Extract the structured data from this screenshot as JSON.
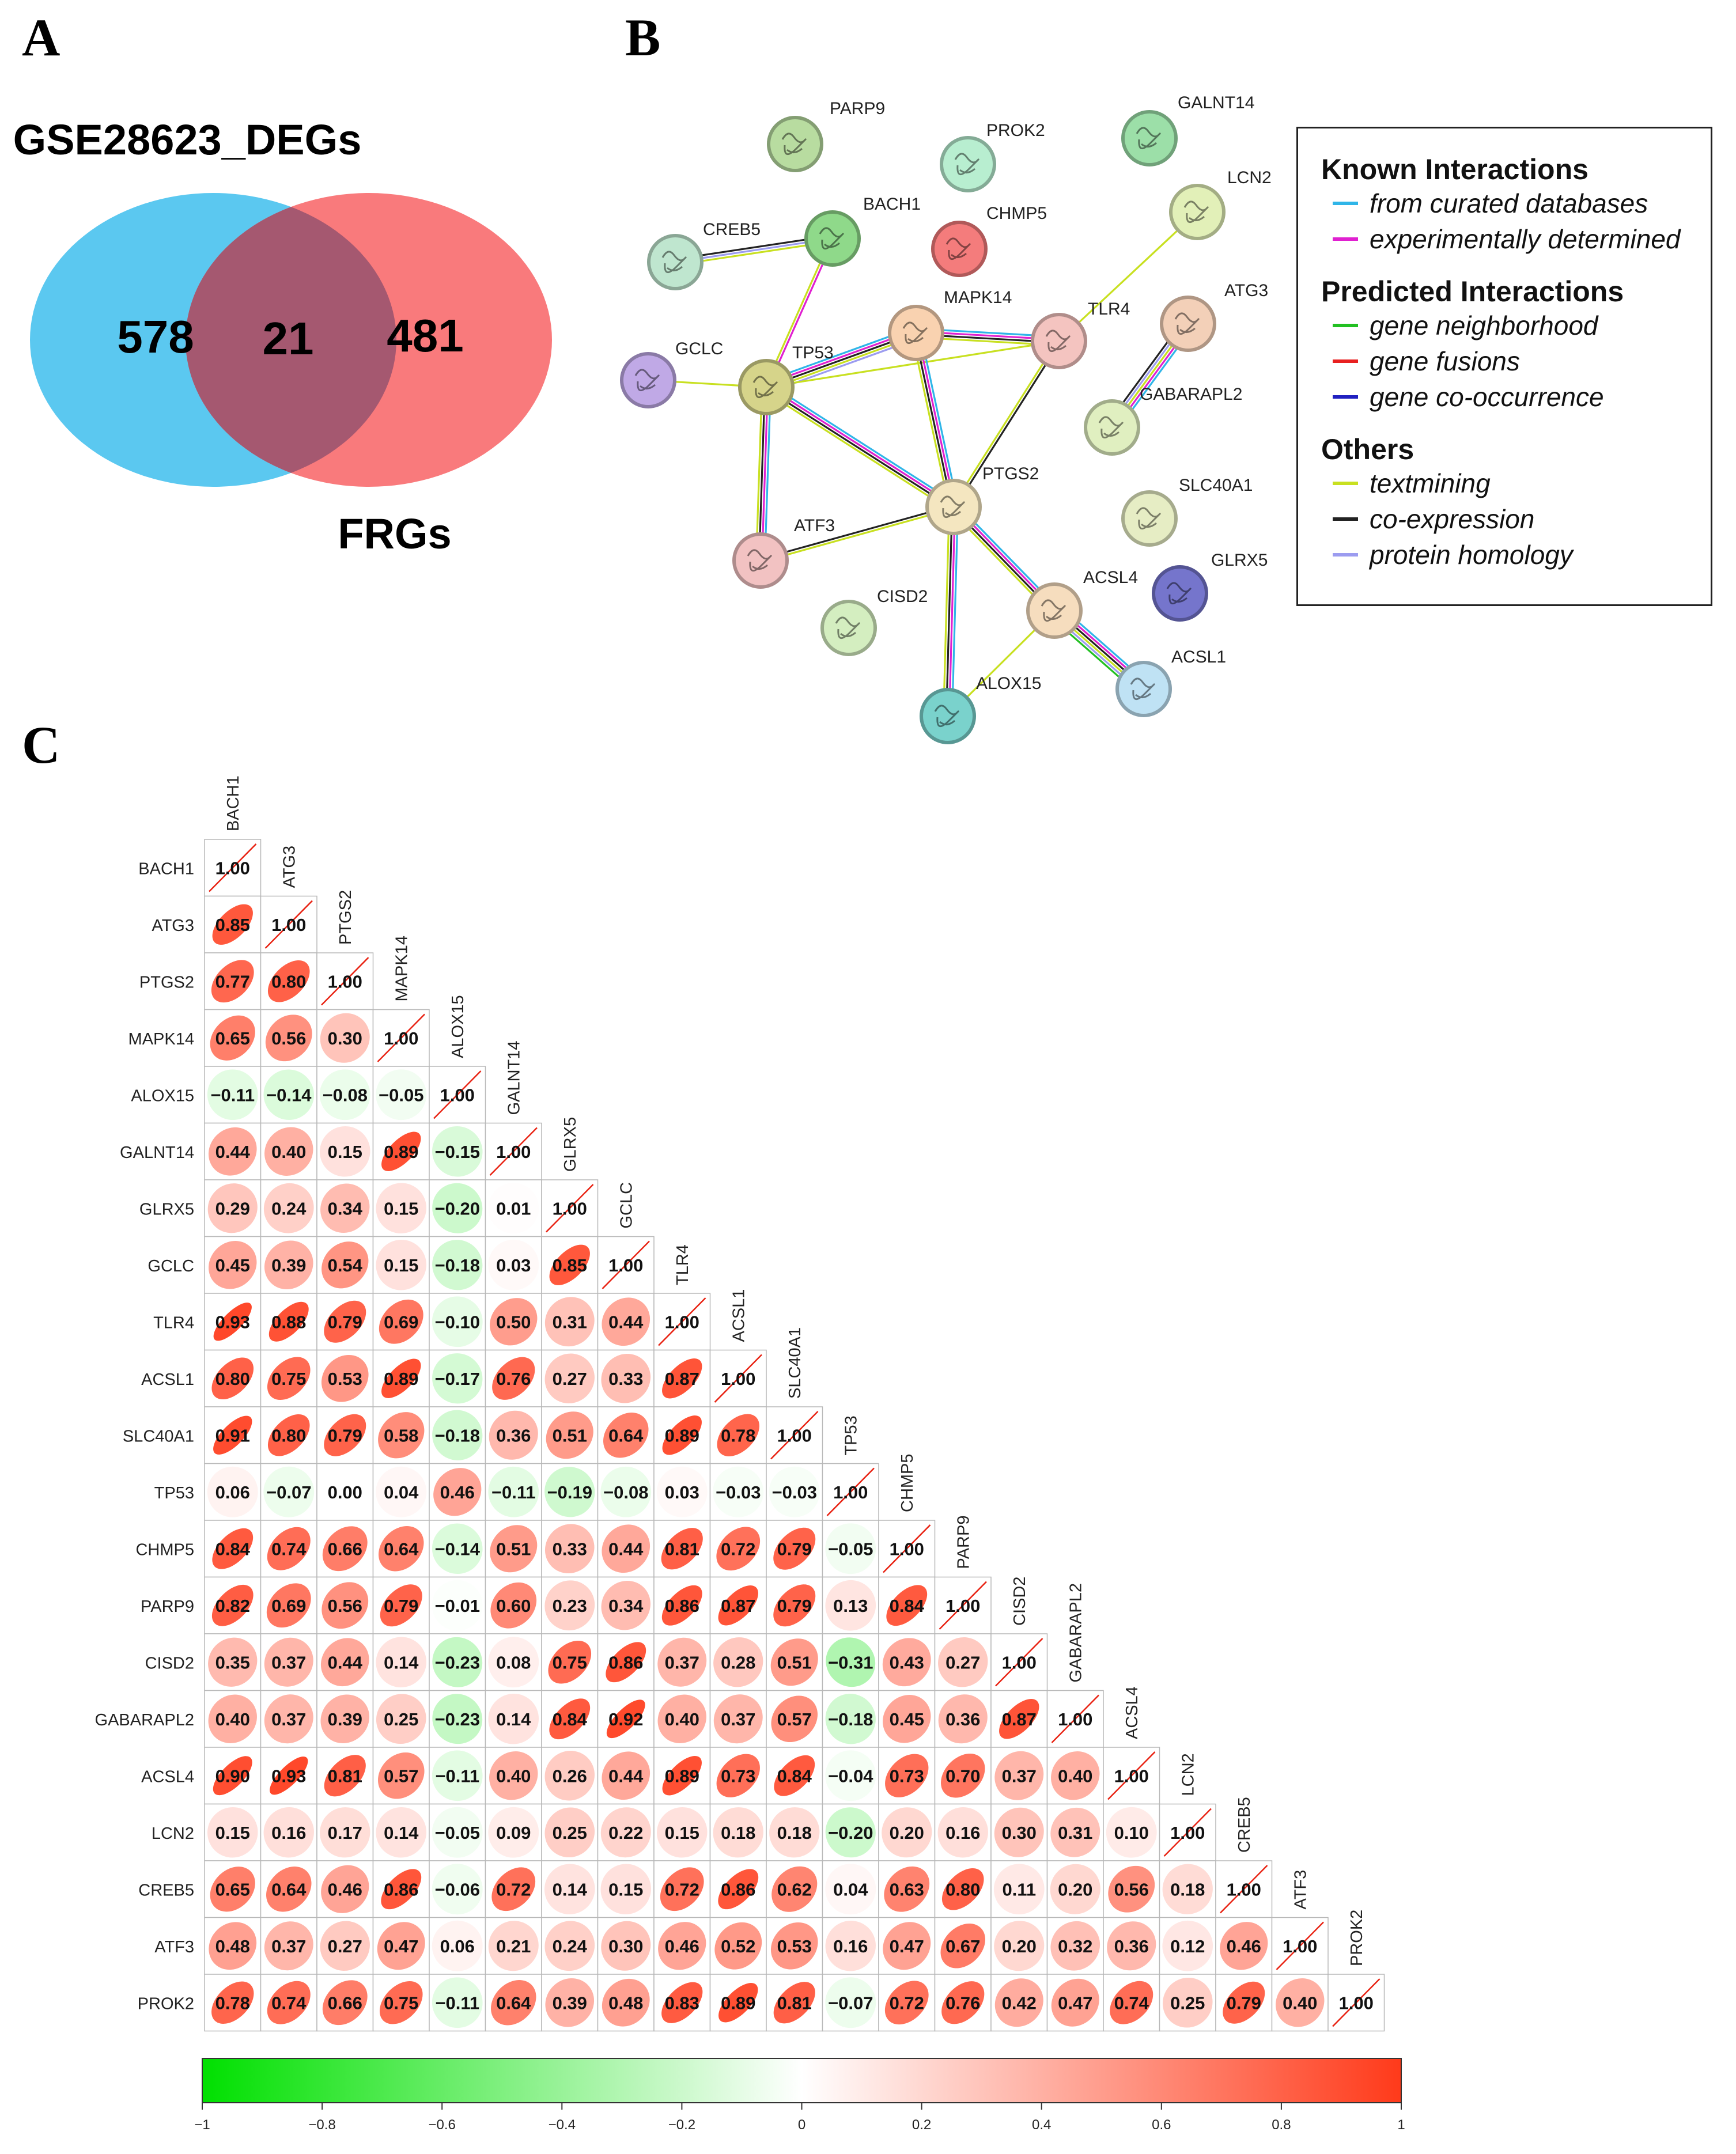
{
  "panels": {
    "a": "A",
    "b": "B",
    "c": "C"
  },
  "venn": {
    "left_label": "GSE28623_DEGs",
    "right_label": "FRGs",
    "left_only": 578,
    "overlap": 21,
    "right_only": 481,
    "left_color": "#5BC8F0",
    "right_color": "#F97A7C",
    "overlap_color": "#A55870"
  },
  "network": {
    "nodes": [
      {
        "id": "PARP9",
        "color": "#B8DCA0",
        "icon": "protein-structure-icon"
      },
      {
        "id": "PROK2",
        "color": "#B8EED0",
        "icon": "protein-structure-icon"
      },
      {
        "id": "GALNT14",
        "color": "#9CDFA8",
        "icon": "protein-structure-icon"
      },
      {
        "id": "LCN2",
        "color": "#E2F0B8",
        "icon": "protein-structure-icon"
      },
      {
        "id": "BACH1",
        "color": "#8FD98A",
        "icon": "protein-structure-icon"
      },
      {
        "id": "CHMP5",
        "color": "#F47C7C",
        "icon": "protein-structure-icon"
      },
      {
        "id": "CREB5",
        "color": "#BFE6CF",
        "icon": "protein-structure-icon"
      },
      {
        "id": "MAPK14",
        "color": "#F9D2B0",
        "icon": "protein-structure-icon"
      },
      {
        "id": "TLR4",
        "color": "#F4C4C0",
        "icon": "protein-structure-icon"
      },
      {
        "id": "ATG3",
        "color": "#F3D0B8",
        "icon": "protein-structure-icon"
      },
      {
        "id": "GCLC",
        "color": "#C0A9E6",
        "icon": "protein-structure-icon"
      },
      {
        "id": "TP53",
        "color": "#D6D48A",
        "icon": "protein-structure-icon"
      },
      {
        "id": "GABARAPL2",
        "color": "#E0EFC0",
        "icon": "protein-structure-icon"
      },
      {
        "id": "PTGS2",
        "color": "#F4E6C0",
        "icon": "protein-structure-icon"
      },
      {
        "id": "SLC40A1",
        "color": "#E6EDC4",
        "icon": "protein-structure-icon"
      },
      {
        "id": "ATF3",
        "color": "#F2C2C2",
        "icon": "protein-structure-icon"
      },
      {
        "id": "GLRX5",
        "color": "#7575CC",
        "icon": "protein-structure-icon"
      },
      {
        "id": "ACSL4",
        "color": "#F6DDBE",
        "icon": "protein-structure-icon"
      },
      {
        "id": "CISD2",
        "color": "#D4EEC0",
        "icon": "protein-structure-icon"
      },
      {
        "id": "ACSL1",
        "color": "#BFE2F4",
        "icon": "protein-structure-icon"
      },
      {
        "id": "ALOX15",
        "color": "#7AD2CC",
        "icon": "protein-structure-icon"
      }
    ],
    "edges": [
      {
        "source": "CREB5",
        "target": "BACH1",
        "types": [
          "coexpression",
          "homology",
          "textmining"
        ]
      },
      {
        "source": "BACH1",
        "target": "TP53",
        "types": [
          "experimental",
          "textmining"
        ]
      },
      {
        "source": "GCLC",
        "target": "TP53",
        "types": [
          "textmining"
        ]
      },
      {
        "source": "TP53",
        "target": "MAPK14",
        "types": [
          "curated",
          "experimental",
          "coexpression",
          "textmining",
          "homology"
        ]
      },
      {
        "source": "TP53",
        "target": "TLR4",
        "types": [
          "textmining"
        ]
      },
      {
        "source": "TP53",
        "target": "PTGS2",
        "types": [
          "curated",
          "experimental",
          "coexpression",
          "textmining"
        ]
      },
      {
        "source": "TP53",
        "target": "ATF3",
        "types": [
          "curated",
          "experimental",
          "coexpression",
          "textmining"
        ]
      },
      {
        "source": "MAPK14",
        "target": "TLR4",
        "types": [
          "curated",
          "experimental",
          "coexpression",
          "textmining"
        ]
      },
      {
        "source": "MAPK14",
        "target": "PTGS2",
        "types": [
          "curated",
          "experimental",
          "coexpression",
          "textmining"
        ]
      },
      {
        "source": "TLR4",
        "target": "PTGS2",
        "types": [
          "coexpression",
          "textmining"
        ]
      },
      {
        "source": "TLR4",
        "target": "LCN2",
        "types": [
          "textmining"
        ]
      },
      {
        "source": "ATG3",
        "target": "GABARAPL2",
        "types": [
          "curated",
          "experimental",
          "textmining",
          "homology",
          "coexpression"
        ]
      },
      {
        "source": "ATF3",
        "target": "PTGS2",
        "types": [
          "coexpression",
          "textmining"
        ]
      },
      {
        "source": "PTGS2",
        "target": "ACSL4",
        "types": [
          "curated",
          "experimental",
          "coexpression",
          "textmining"
        ]
      },
      {
        "source": "PTGS2",
        "target": "ALOX15",
        "types": [
          "curated",
          "experimental",
          "coexpression",
          "textmining"
        ]
      },
      {
        "source": "ACSL4",
        "target": "ACSL1",
        "types": [
          "curated",
          "experimental",
          "coexpression",
          "textmining",
          "homology",
          "neighborhood"
        ]
      },
      {
        "source": "ACSL4",
        "target": "ALOX15",
        "types": [
          "textmining"
        ]
      }
    ],
    "legend": {
      "sections": [
        {
          "title": "Known Interactions",
          "items": [
            {
              "label": "from curated databases",
              "color": "#2FB5E8"
            },
            {
              "label": "experimentally determined",
              "color": "#E020D0"
            }
          ]
        },
        {
          "title": "Predicted Interactions",
          "items": [
            {
              "label": "gene neighborhood",
              "color": "#22C022"
            },
            {
              "label": "gene fusions",
              "color": "#E82020"
            },
            {
              "label": "gene co-occurrence",
              "color": "#2020C0"
            }
          ]
        },
        {
          "title": "Others",
          "items": [
            {
              "label": "textmining",
              "color": "#C8E020"
            },
            {
              "label": "co-expression",
              "color": "#222222"
            },
            {
              "label": "protein homology",
              "color": "#9C9CF0"
            }
          ]
        }
      ]
    }
  },
  "chart_data": {
    "type": "heatmap",
    "subtype": "lower-triangle correlation ellipse matrix",
    "variables": [
      "BACH1",
      "ATG3",
      "PTGS2",
      "MAPK14",
      "ALOX15",
      "GALNT14",
      "GLRX5",
      "GCLC",
      "TLR4",
      "ACSL1",
      "SLC40A1",
      "TP53",
      "CHMP5",
      "PARP9",
      "CISD2",
      "GABARAPL2",
      "ACSL4",
      "LCN2",
      "CREB5",
      "ATF3",
      "PROK2"
    ],
    "matrix": [
      [
        "1.00"
      ],
      [
        "0.85",
        "1.00"
      ],
      [
        "0.77",
        "0.80",
        "1.00"
      ],
      [
        "0.65",
        "0.56",
        "0.30",
        "1.00"
      ],
      [
        "−0.11",
        "−0.14",
        "−0.08",
        "−0.05",
        "1.00"
      ],
      [
        "0.44",
        "0.40",
        "0.15",
        "0.89",
        "−0.15",
        "1.00"
      ],
      [
        "0.29",
        "0.24",
        "0.34",
        "0.15",
        "−0.20",
        "0.01",
        "1.00"
      ],
      [
        "0.45",
        "0.39",
        "0.54",
        "0.15",
        "−0.18",
        "0.03",
        "0.85",
        "1.00"
      ],
      [
        "0.93",
        "0.88",
        "0.79",
        "0.69",
        "−0.10",
        "0.50",
        "0.31",
        "0.44",
        "1.00"
      ],
      [
        "0.80",
        "0.75",
        "0.53",
        "0.89",
        "−0.17",
        "0.76",
        "0.27",
        "0.33",
        "0.87",
        "1.00"
      ],
      [
        "0.91",
        "0.80",
        "0.79",
        "0.58",
        "−0.18",
        "0.36",
        "0.51",
        "0.64",
        "0.89",
        "0.78",
        "1.00"
      ],
      [
        "0.06",
        "−0.07",
        "0.00",
        "0.04",
        "0.46",
        "−0.11",
        "−0.19",
        "−0.08",
        "0.03",
        "−0.03",
        "−0.03",
        "1.00"
      ],
      [
        "0.84",
        "0.74",
        "0.66",
        "0.64",
        "−0.14",
        "0.51",
        "0.33",
        "0.44",
        "0.81",
        "0.72",
        "0.79",
        "−0.05",
        "1.00"
      ],
      [
        "0.82",
        "0.69",
        "0.56",
        "0.79",
        "−0.01",
        "0.60",
        "0.23",
        "0.34",
        "0.86",
        "0.87",
        "0.79",
        "0.13",
        "0.84",
        "1.00"
      ],
      [
        "0.35",
        "0.37",
        "0.44",
        "0.14",
        "−0.23",
        "0.08",
        "0.75",
        "0.86",
        "0.37",
        "0.28",
        "0.51",
        "−0.31",
        "0.43",
        "0.27",
        "1.00"
      ],
      [
        "0.40",
        "0.37",
        "0.39",
        "0.25",
        "−0.23",
        "0.14",
        "0.84",
        "0.92",
        "0.40",
        "0.37",
        "0.57",
        "−0.18",
        "0.45",
        "0.36",
        "0.87",
        "1.00"
      ],
      [
        "0.90",
        "0.93",
        "0.81",
        "0.57",
        "−0.11",
        "0.40",
        "0.26",
        "0.44",
        "0.89",
        "0.73",
        "0.84",
        "−0.04",
        "0.73",
        "0.70",
        "0.37",
        "0.40",
        "1.00"
      ],
      [
        "0.15",
        "0.16",
        "0.17",
        "0.14",
        "−0.05",
        "0.09",
        "0.25",
        "0.22",
        "0.15",
        "0.18",
        "0.18",
        "−0.20",
        "0.20",
        "0.16",
        "0.30",
        "0.31",
        "0.10",
        "1.00"
      ],
      [
        "0.65",
        "0.64",
        "0.46",
        "0.86",
        "−0.06",
        "0.72",
        "0.14",
        "0.15",
        "0.72",
        "0.86",
        "0.62",
        "0.04",
        "0.63",
        "0.80",
        "0.11",
        "0.20",
        "0.56",
        "0.18",
        "1.00"
      ],
      [
        "0.48",
        "0.37",
        "0.27",
        "0.47",
        "0.06",
        "0.21",
        "0.24",
        "0.30",
        "0.46",
        "0.52",
        "0.53",
        "0.16",
        "0.47",
        "0.67",
        "0.20",
        "0.32",
        "0.36",
        "0.12",
        "0.46",
        "1.00"
      ],
      [
        "0.78",
        "0.74",
        "0.66",
        "0.75",
        "−0.11",
        "0.64",
        "0.39",
        "0.48",
        "0.83",
        "0.89",
        "0.81",
        "−0.07",
        "0.72",
        "0.76",
        "0.42",
        "0.47",
        "0.74",
        "0.25",
        "0.79",
        "0.40",
        "1.00"
      ]
    ],
    "colorbar": {
      "ticks": [
        "−1",
        "−0.8",
        "−0.6",
        "−0.4",
        "−0.2",
        "0",
        "0.2",
        "0.4",
        "0.6",
        "0.8",
        "1"
      ],
      "range": [
        -1,
        1
      ],
      "colors": {
        "neg": "#00E000",
        "mid": "#FFFFFF",
        "pos": "#FF3A1A"
      }
    }
  }
}
